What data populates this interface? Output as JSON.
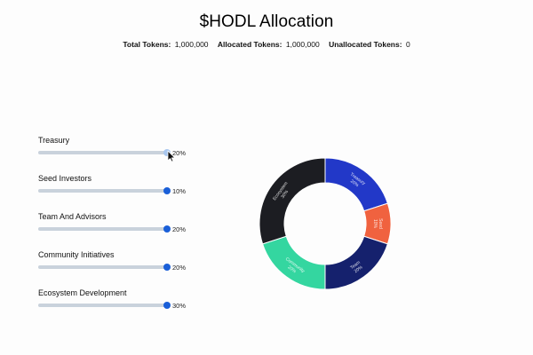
{
  "header": {
    "title": "$HODL Allocation",
    "total_label": "Total Tokens:",
    "total_value": "1,000,000",
    "allocated_label": "Allocated Tokens:",
    "allocated_value": "1,000,000",
    "unallocated_label": "Unallocated Tokens:",
    "unallocated_value": "0"
  },
  "sliders": [
    {
      "label": "Treasury",
      "percent": 20,
      "percent_text": "20%"
    },
    {
      "label": "Seed Investors",
      "percent": 10,
      "percent_text": "10%"
    },
    {
      "label": "Team And Advisors",
      "percent": 20,
      "percent_text": "20%"
    },
    {
      "label": "Community Initiatives",
      "percent": 20,
      "percent_text": "20%"
    },
    {
      "label": "Ecosystem Development",
      "percent": 30,
      "percent_text": "30%"
    }
  ],
  "active_slider": 0,
  "chart_data": {
    "type": "pie",
    "variant": "donut",
    "slices": [
      {
        "label": "Treasury",
        "value": 20,
        "value_text": "20%",
        "color": "#2238c8"
      },
      {
        "label": "Seed",
        "value": 10,
        "value_text": "10%",
        "color": "#f0623f"
      },
      {
        "label": "Team",
        "value": 20,
        "value_text": "20%",
        "color": "#15216d"
      },
      {
        "label": "Community",
        "value": 20,
        "value_text": "20%",
        "color": "#34d6a0"
      },
      {
        "label": "Ecosystem",
        "value": 30,
        "value_text": "30%",
        "color": "#1c1d22"
      }
    ]
  },
  "colors": {
    "slider_track": "#c9d2dc",
    "slider_thumb": "#1a5fd8",
    "slider_thumb_active": "#a9c7ef"
  }
}
